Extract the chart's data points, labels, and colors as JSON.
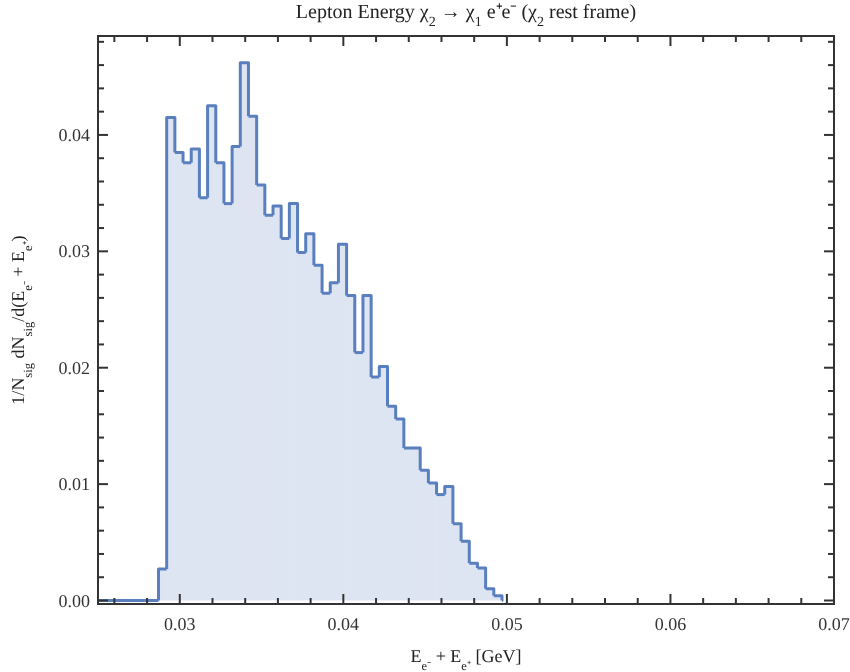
{
  "chart_data": {
    "type": "histogram",
    "title": "Lepton Energy χ$_{2}$ → χ$_{1}$ e⁺e⁻ (χ$_{2}$ rest frame)",
    "xlabel": "E$_{e⁻}$ + E$_{e⁺}$ [GeV]",
    "ylabel": "1/N$_{sig}$ dN$_{sig}$/d(E$_{e⁻}$ + E$_{e⁺}$)",
    "color": "#5a7fbf",
    "bins": [
      0.025,
      0.0287,
      0.0292,
      0.0297,
      0.0302,
      0.0307,
      0.0312,
      0.0317,
      0.0322,
      0.0327,
      0.0332,
      0.0337,
      0.0342,
      0.0347,
      0.0352,
      0.0357,
      0.0362,
      0.0367,
      0.0372,
      0.0377,
      0.0382,
      0.0387,
      0.0392,
      0.0397,
      0.0402,
      0.0407,
      0.0412,
      0.0417,
      0.0422,
      0.0427,
      0.0432,
      0.0437,
      0.0442,
      0.0447,
      0.0452,
      0.0457,
      0.0462,
      0.0467,
      0.0472,
      0.0477,
      0.0482,
      0.0487,
      0.0492,
      0.0497
    ],
    "values": [
      0,
      0.0027,
      0.0415,
      0.0385,
      0.0376,
      0.0388,
      0.0346,
      0.0425,
      0.0376,
      0.0341,
      0.039,
      0.0462,
      0.0416,
      0.0357,
      0.0331,
      0.0339,
      0.0311,
      0.0341,
      0.0299,
      0.0315,
      0.0288,
      0.0264,
      0.0273,
      0.0306,
      0.0262,
      0.0213,
      0.0262,
      0.0192,
      0.0201,
      0.0167,
      0.0156,
      0.0131,
      0.0131,
      0.0112,
      0.0101,
      0.0091,
      0.0098,
      0.0066,
      0.0051,
      0.0032,
      0.0028,
      0.001,
      0.0004
    ],
    "xlim": [
      0.025,
      0.07
    ],
    "ylim": [
      -0.0003,
      0.0485
    ],
    "xticks": [
      {
        "value": 0.026,
        "label": null
      },
      {
        "value": 0.028,
        "label": null
      },
      {
        "value": 0.03,
        "label": "0.03"
      },
      {
        "value": 0.032,
        "label": null
      },
      {
        "value": 0.034,
        "label": null
      },
      {
        "value": 0.036,
        "label": null
      },
      {
        "value": 0.038,
        "label": null
      },
      0.04,
      {
        "value": 0.042,
        "label": null
      },
      {
        "value": 0.044,
        "label": null
      },
      {
        "value": 0.046,
        "label": null
      },
      {
        "value": 0.048,
        "label": null
      },
      0.05,
      {
        "value": 0.052,
        "label": null
      },
      {
        "value": 0.054,
        "label": null
      },
      {
        "value": 0.056,
        "label": null
      },
      {
        "value": 0.058,
        "label": null
      },
      0.06,
      {
        "value": 0.062,
        "label": null
      },
      {
        "value": 0.064,
        "label": null
      },
      {
        "value": 0.066,
        "label": null
      },
      {
        "value": 0.068,
        "label": null
      },
      0.07
    ],
    "yticks": [
      {
        "value": 0,
        "label": "0.00"
      },
      {
        "value": 0.002,
        "label": null
      },
      {
        "value": 0.004,
        "label": null
      },
      {
        "value": 0.006,
        "label": null
      },
      {
        "value": 0.008,
        "label": null
      },
      0.01,
      {
        "value": 0.012,
        "label": null
      },
      {
        "value": 0.014,
        "label": null
      },
      {
        "value": 0.016,
        "label": null
      },
      {
        "value": 0.018,
        "label": null
      },
      0.02,
      {
        "value": 0.022,
        "label": null
      },
      {
        "value": 0.024,
        "label": null
      },
      {
        "value": 0.026,
        "label": null
      },
      {
        "value": 0.028,
        "label": null
      },
      0.03,
      {
        "value": 0.032,
        "label": null
      },
      {
        "value": 0.034,
        "label": null
      },
      {
        "value": 0.036,
        "label": null
      },
      {
        "value": 0.038,
        "label": null
      },
      0.04,
      {
        "value": 0.042,
        "label": null
      },
      {
        "value": 0.044,
        "label": null
      },
      {
        "value": 0.046,
        "label": null
      },
      {
        "value": 0.048,
        "label": null
      }
    ],
    "grid": false
  }
}
